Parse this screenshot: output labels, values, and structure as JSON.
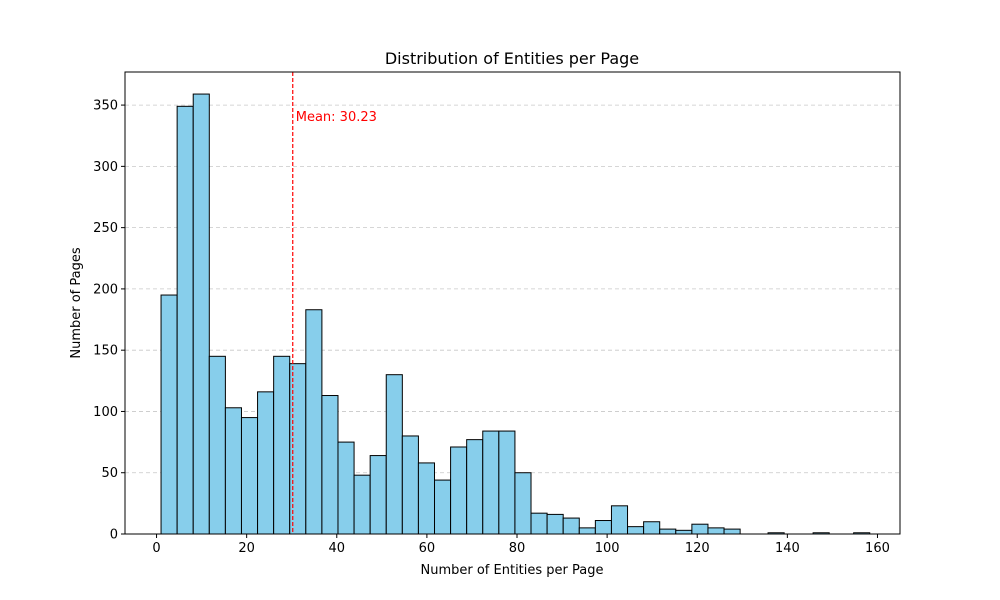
{
  "chart_data": {
    "type": "bar",
    "title": "Distribution of Entities per Page",
    "xlabel": "Number of Entities per Page",
    "ylabel": "Number of Pages",
    "xlim": [
      -7,
      165
    ],
    "ylim": [
      0,
      377
    ],
    "xticks": [
      0,
      20,
      40,
      60,
      80,
      100,
      120,
      140,
      160
    ],
    "yticks": [
      0,
      50,
      100,
      150,
      200,
      250,
      300,
      350
    ],
    "grid": "y-dashed",
    "bin_start": 1,
    "bin_width": 3.57,
    "values": [
      195,
      349,
      359,
      145,
      103,
      95,
      116,
      145,
      139,
      183,
      113,
      75,
      48,
      64,
      130,
      80,
      58,
      44,
      71,
      77,
      84,
      84,
      50,
      17,
      16,
      13,
      5,
      11,
      23,
      6,
      10,
      4,
      3,
      8,
      5,
      4,
      0,
      0,
      0,
      0,
      0,
      0,
      0,
      0,
      0,
      0,
      0,
      0,
      0,
      0,
      0,
      0,
      0,
      0,
      0,
      0,
      0,
      0,
      0,
      0,
      0,
      0,
      0,
      0,
      0,
      0,
      0,
      0,
      0,
      0,
      0,
      0,
      0,
      0,
      0,
      0,
      0,
      0,
      0,
      0,
      0,
      0,
      0,
      0,
      0,
      0,
      0,
      0
    ],
    "sparse_bins": [
      {
        "x": 137.5,
        "value": 1
      },
      {
        "x": 147.5,
        "value": 1
      },
      {
        "x": 156.5,
        "value": 1
      }
    ],
    "mean": 30.23,
    "mean_label": "Mean: 30.23",
    "colors": {
      "bar": "#87ceeb",
      "edge": "#000000",
      "mean_line": "#ff0000",
      "grid": "#c8c8c8"
    }
  }
}
